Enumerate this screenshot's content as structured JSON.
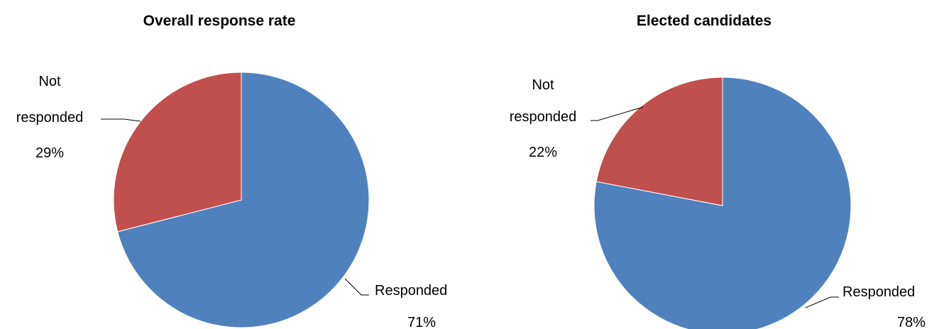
{
  "chart_data": [
    {
      "type": "pie",
      "title": "Overall response rate",
      "slices": [
        {
          "label_line1": "Responded",
          "label_line2": "",
          "pct_label": "71%",
          "value": 71,
          "color": "#4F81BD"
        },
        {
          "label_line1": "Not",
          "label_line2": "responded",
          "pct_label": "29%",
          "value": 29,
          "color": "#C0504D"
        }
      ]
    },
    {
      "type": "pie",
      "title": "Elected candidates",
      "slices": [
        {
          "label_line1": "Responded",
          "label_line2": "",
          "pct_label": "78%",
          "value": 78,
          "color": "#4F81BD"
        },
        {
          "label_line1": "Not",
          "label_line2": "responded",
          "pct_label": "22%",
          "value": 22,
          "color": "#C0504D"
        }
      ]
    }
  ]
}
